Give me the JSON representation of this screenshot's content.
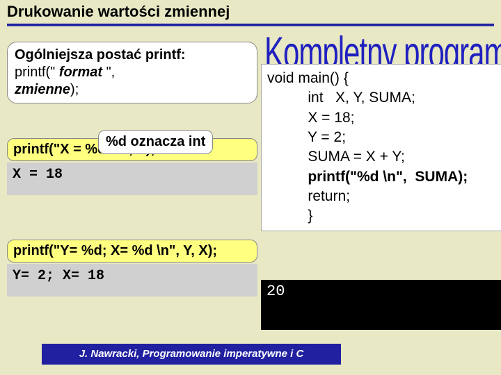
{
  "title": "Drukowanie wartości zmiennej",
  "general": {
    "heading": "Ogólniejsza postać printf:",
    "line1_prefix": "printf(\" ",
    "line1_italic": "format",
    "line1_suffix": " \", ",
    "line2_italic": "zmienne",
    "line2_suffix": ");"
  },
  "note": "%d oznacza int",
  "ex1_call": "printf(\"X = %d \\n\", X);",
  "ex1_out": "X = 18",
  "ex2_call": "printf(\"Y= %d; X= %d \\n\", Y, X);",
  "ex2_out": "Y= 2; X= 18",
  "right_title": "Kompletny program",
  "code": "void main() {\n          int   X, Y, SUMA;\n          X = 18;\n          Y = 2;\n          SUMA = X + Y;\n          printf(\"%d \\n\",  SUMA);\n          return;\n          }",
  "code_bold_idx": 5,
  "run_output": "20",
  "footer": "J. Nawracki, Programowanie imperatywne i C",
  "colors": {
    "page_bg": "#e8e8c4",
    "accent": "#2020a0",
    "right_title": "#2020c0",
    "highlight_bg": "#ffff80",
    "output_bg": "#d0d0d0",
    "terminal_bg": "#000000",
    "terminal_fg": "#ffffff"
  }
}
